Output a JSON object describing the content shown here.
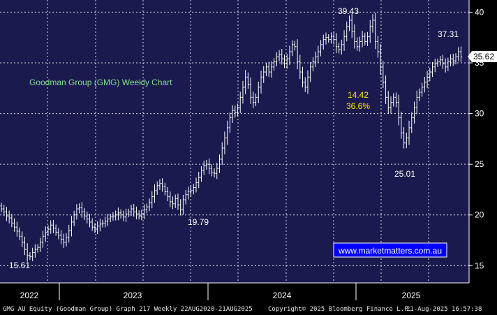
{
  "chart_data": {
    "type": "ohlc",
    "title": "Goodman Group (GMG) Weekly Chart",
    "x_axis_labels": [
      "2022",
      "2023",
      "2024",
      "2025"
    ],
    "y_axis_ticks": [
      15,
      20,
      25,
      30,
      35,
      40
    ],
    "ylim": [
      13.3,
      41.2
    ],
    "grid": true,
    "price_scale_side": "right",
    "last_price": "35.62",
    "annotations": [
      {
        "text": "39.43",
        "date": "2024-11",
        "value": 39.43
      },
      {
        "text": "37.31",
        "date": "2025-08",
        "value": 37.31
      },
      {
        "text": "25.01",
        "date": "2025-04",
        "value": 25.01
      },
      {
        "text": "19.79",
        "date": "2023-10",
        "value": 19.79
      },
      {
        "text": "15.61",
        "date": "2022-01",
        "value": 15.61
      }
    ],
    "move_label": {
      "points": "14.42",
      "percent": "36.6%"
    },
    "watermark": "www.marketmatters.com.au",
    "closes": [
      20.6,
      20.3,
      19.9,
      19.7,
      19.2,
      18.8,
      18.4,
      17.9,
      17.3,
      16.6,
      16.0,
      15.9,
      16.3,
      16.6,
      16.8,
      17.3,
      17.9,
      18.3,
      18.6,
      19.0,
      18.7,
      18.3,
      18.0,
      17.6,
      17.3,
      17.8,
      18.5,
      19.3,
      20.0,
      20.6,
      20.7,
      20.3,
      19.9,
      19.6,
      19.3,
      18.8,
      18.6,
      18.9,
      19.1,
      19.2,
      19.4,
      19.6,
      19.8,
      19.9,
      20.0,
      20.2,
      20.0,
      19.8,
      20.1,
      20.3,
      20.6,
      20.3,
      20.1,
      19.9,
      20.1,
      20.5,
      20.8,
      21.2,
      21.8,
      22.4,
      22.9,
      23.1,
      22.8,
      22.3,
      21.8,
      21.3,
      21.1,
      21.6,
      21.0,
      20.5,
      21.5,
      22.0,
      22.3,
      22.4,
      22.7,
      23.2,
      23.7,
      24.4,
      24.9,
      25.0,
      24.6,
      24.2,
      24.1,
      24.6,
      25.5,
      26.6,
      27.6,
      28.6,
      29.6,
      30.3,
      30.1,
      30.6,
      31.6,
      32.6,
      33.6,
      32.9,
      31.6,
      31.1,
      31.6,
      32.6,
      33.6,
      34.1,
      34.6,
      34.1,
      34.6,
      35.1,
      35.6,
      35.8,
      35.4,
      34.9,
      35.4,
      36.1,
      36.8,
      36.6,
      35.1,
      34.1,
      33.1,
      32.6,
      33.6,
      34.6,
      35.1,
      35.6,
      36.1,
      36.8,
      37.3,
      37.5,
      37.3,
      37.6,
      37.3,
      36.6,
      36.3,
      36.8,
      37.6,
      38.6,
      39.2,
      38.1,
      37.1,
      36.6,
      37.1,
      37.6,
      37.1,
      37.6,
      38.6,
      39.2,
      37.1,
      36.1,
      34.6,
      33.1,
      31.6,
      30.6,
      31.1,
      31.6,
      31.1,
      29.6,
      28.1,
      27.1,
      27.6,
      28.6,
      29.6,
      30.6,
      31.6,
      32.1,
      32.6,
      33.1,
      33.6,
      34.1,
      34.6,
      34.9,
      35.1,
      35.3,
      34.9,
      34.6,
      35.1,
      35.4,
      35.2,
      35.6,
      36.1,
      35.6
    ]
  },
  "footer": {
    "left": "GMG AU Equity (Goodman Group) Graph 217  Weekly 22AUG2020-21AUG2025",
    "center": "Copyright© 2025 Bloomberg Finance L.P.",
    "right": "21-Aug-2025 16:57:38"
  },
  "colors": {
    "background": "#1a1a4e",
    "grid": "#ffffff",
    "bars": "#ffffff",
    "title": "#7ee08a",
    "annotation": "#ffffff",
    "move_label": "#ffe600",
    "watermark_bg": "#0000ff",
    "watermark_text": "#ffffff",
    "price_box": "#ffffff",
    "price_text": "#000000"
  }
}
